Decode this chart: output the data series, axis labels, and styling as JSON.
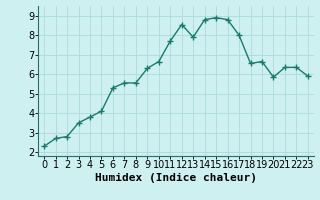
{
  "x": [
    0,
    1,
    2,
    3,
    4,
    5,
    6,
    7,
    8,
    9,
    10,
    11,
    12,
    13,
    14,
    15,
    16,
    17,
    18,
    19,
    20,
    21,
    22,
    23
  ],
  "y": [
    2.3,
    2.7,
    2.8,
    3.5,
    3.8,
    4.1,
    5.3,
    5.55,
    5.55,
    6.3,
    6.65,
    7.7,
    8.55,
    7.9,
    8.8,
    8.9,
    8.8,
    8.0,
    6.55,
    6.65,
    5.85,
    6.35,
    6.35,
    5.9
  ],
  "line_color": "#1a7a6e",
  "marker": "+",
  "marker_size": 4,
  "linewidth": 1.0,
  "background_color": "#cff0f0",
  "grid_color": "#aadada",
  "xlabel": "Humidex (Indice chaleur)",
  "xlabel_fontsize": 8,
  "tick_fontsize": 7,
  "xlim": [
    -0.5,
    23.5
  ],
  "ylim": [
    1.8,
    9.5
  ],
  "yticks": [
    2,
    3,
    4,
    5,
    6,
    7,
    8,
    9
  ],
  "xticks": [
    0,
    1,
    2,
    3,
    4,
    5,
    6,
    7,
    8,
    9,
    10,
    11,
    12,
    13,
    14,
    15,
    16,
    17,
    18,
    19,
    20,
    21,
    22,
    23
  ]
}
